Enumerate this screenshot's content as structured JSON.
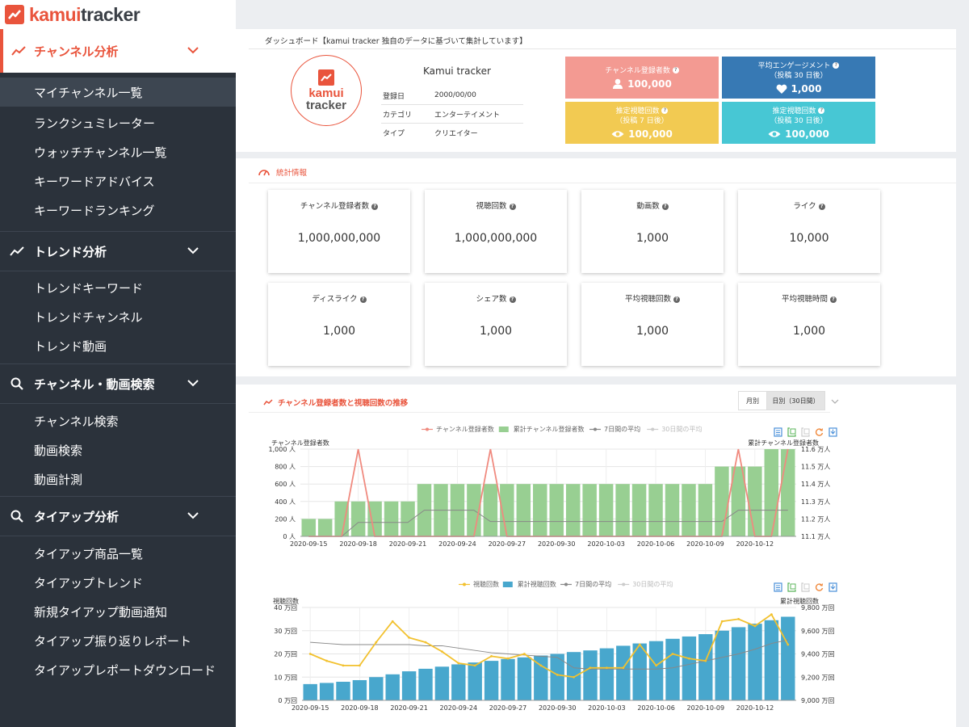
{
  "app": {
    "brand_main": "kamui",
    "brand_sub": "tracker"
  },
  "sidebar": {
    "sections": [
      {
        "label": "チャンネル分析",
        "items": [
          "マイチャンネル一覧",
          "ランクシュミレーター",
          "ウォッチチャンネル一覧",
          "キーワードアドバイス",
          "キーワードランキング"
        ]
      },
      {
        "label": "トレンド分析",
        "items": [
          "トレンドキーワード",
          "トレンドチャンネル",
          "トレンド動画"
        ]
      },
      {
        "label": "チャンネル・動画検索",
        "items": [
          "チャンネル検索",
          "動画検索",
          "動画計測"
        ]
      },
      {
        "label": "タイアップ分析",
        "items": [
          "タイアップ商品一覧",
          "タイアップトレンド",
          "新規タイアップ動画通知",
          "タイアップ振り返りレポート",
          "タイアップレポートダウンロード"
        ]
      }
    ]
  },
  "dashboard": {
    "caption": "ダッシュボード【kamui tracker 独自のデータに基づいて集計しています】",
    "channel_name": "Kamui tracker",
    "info": [
      {
        "label": "登録日",
        "value": "2000/00/00"
      },
      {
        "label": "カテゴリ",
        "value": "エンターテイメント"
      },
      {
        "label": "タイプ",
        "value": "クリエイター"
      }
    ],
    "cards": [
      {
        "title": "チャンネル登録者数",
        "sub": "",
        "value": "100,000",
        "color": "#f39a92",
        "icon": "user-icon"
      },
      {
        "title": "平均エンゲージメント",
        "sub": "（投稿 30 日後）",
        "value": "1,000",
        "color": "#3779b4",
        "icon": "heart-icon"
      },
      {
        "title": "推定視聴回数",
        "sub": "（投稿 7 日後）",
        "value": "100,000",
        "color": "#f2ca52",
        "icon": "eye-icon"
      },
      {
        "title": "推定視聴回数",
        "sub": "（投稿 30 日後）",
        "value": "100,000",
        "color": "#47c7d4",
        "icon": "eye-icon"
      }
    ]
  },
  "stats": {
    "title": "統計情報",
    "cards": [
      {
        "label": "チャンネル登録者数",
        "value": "1,000,000,000"
      },
      {
        "label": "視聴回数",
        "value": "1,000,000,000"
      },
      {
        "label": "動画数",
        "value": "1,000"
      },
      {
        "label": "ライク",
        "value": "10,000"
      },
      {
        "label": "ディスライク",
        "value": "1,000"
      },
      {
        "label": "シェア数",
        "value": "1,000"
      },
      {
        "label": "平均視聴回数",
        "value": "1,000"
      },
      {
        "label": "平均視聴時間",
        "value": "1,000"
      }
    ]
  },
  "trend": {
    "title": "チャンネル登録者数と視聴回数の推移",
    "period_monthly": "月別",
    "period_daily": "日別（30日間）"
  },
  "chart_data": [
    {
      "type": "bar",
      "title": "チャンネル登録者数",
      "legend": [
        "チャンネル登録者数",
        "累計チャンネル登録者数",
        "7日間の平均",
        "30日間の平均"
      ],
      "ylabel": "チャンネル登録者数",
      "y2label": "累計チャンネル登録者数",
      "yticks": [
        "0 人",
        "200 人",
        "400 人",
        "600 人",
        "800 人",
        "1,000 人"
      ],
      "y2ticks": [
        "11.1 万人",
        "11.2 万人",
        "11.3 万人",
        "11.4 万人",
        "11.5 万人",
        "11.6 万人"
      ],
      "xticks": [
        "2020-09-15",
        "2020-09-18",
        "2020-09-21",
        "2020-09-24",
        "2020-09-27",
        "2020-09-30",
        "2020-10-03",
        "2020-10-06",
        "2020-10-09",
        "2020-10-12"
      ],
      "ylim": [
        0,
        1000
      ],
      "series": [
        {
          "name": "チャンネル登録者数",
          "values": [
            0,
            0,
            0,
            1000,
            0,
            0,
            0,
            0,
            0,
            0,
            0,
            1000,
            0,
            0,
            0,
            0,
            0,
            0,
            0,
            0,
            0,
            0,
            0,
            0,
            0,
            0,
            1000,
            0,
            0,
            1000
          ]
        },
        {
          "name": "累計チャンネル登録者数",
          "values": [
            200,
            200,
            400,
            400,
            400,
            400,
            400,
            600,
            600,
            600,
            600,
            600,
            600,
            600,
            600,
            600,
            600,
            600,
            600,
            600,
            600,
            600,
            600,
            600,
            600,
            800,
            800,
            800,
            1000,
            1000
          ]
        },
        {
          "name": "7日間の平均",
          "values": [
            0,
            0,
            0,
            160,
            160,
            160,
            160,
            300,
            300,
            300,
            300,
            170,
            170,
            170,
            170,
            170,
            170,
            170,
            170,
            170,
            170,
            170,
            170,
            170,
            170,
            170,
            300,
            300,
            300,
            300
          ]
        }
      ]
    },
    {
      "type": "bar",
      "title": "視聴回数",
      "legend": [
        "視聴回数",
        "累計視聴回数",
        "7日間の平均",
        "30日間の平均"
      ],
      "ylabel": "視聴回数",
      "y2label": "累計視聴回数",
      "yticks": [
        "0 万回",
        "10 万回",
        "20 万回",
        "30 万回",
        "40 万回"
      ],
      "y2ticks": [
        "9,000 万回",
        "9,200 万回",
        "9,400 万回",
        "9,600 万回",
        "9,800 万回"
      ],
      "xticks": [
        "2020-09-15",
        "2020-09-18",
        "2020-09-21",
        "2020-09-24",
        "2020-09-27",
        "2020-09-30",
        "2020-10-03",
        "2020-10-06",
        "2020-10-09",
        "2020-10-12"
      ],
      "ylim": [
        0,
        40
      ],
      "series": [
        {
          "name": "視聴回数",
          "values": [
            20,
            17,
            15,
            15,
            25,
            34,
            27,
            25,
            21,
            16,
            15,
            19,
            18,
            20,
            15,
            11,
            10,
            14,
            14,
            14,
            24,
            15,
            20,
            18,
            17,
            34,
            35,
            32,
            37,
            24
          ]
        },
        {
          "name": "累計視聴回数",
          "values": [
            7,
            7.5,
            8,
            8.7,
            10,
            11.2,
            12.5,
            13.6,
            14.5,
            15.5,
            16.3,
            17,
            17.8,
            18.5,
            19.3,
            20,
            20.8,
            21.5,
            22.4,
            23.5,
            24.5,
            25.5,
            26.5,
            27.5,
            28.5,
            30,
            31.5,
            33,
            34.5,
            36
          ]
        },
        {
          "name": "7日間の平均",
          "values": [
            25,
            24.5,
            24,
            24,
            24,
            24,
            24,
            23.5,
            23.5,
            22.5,
            21.5,
            20.5,
            20,
            19.5,
            19,
            18.5,
            14,
            13.5,
            13.5,
            13.5,
            13.5,
            13.5,
            14,
            15.5,
            17,
            18.5,
            20,
            22,
            24.5,
            26
          ]
        }
      ]
    }
  ]
}
